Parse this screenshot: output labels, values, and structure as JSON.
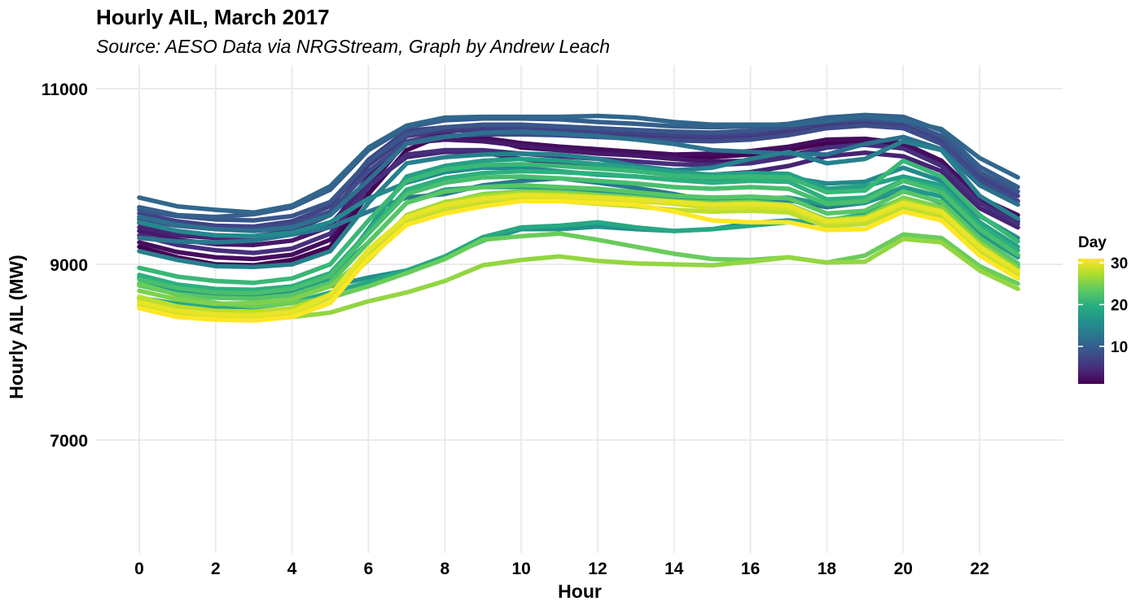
{
  "chart_data": {
    "type": "line",
    "title": "Hourly AIL, March 2017",
    "subtitle": "Source: AESO Data via NRGStream, Graph by Andrew Leach",
    "xlabel": "Hour",
    "ylabel": "Hourly AIL (MW)",
    "xlim": [
      0,
      23
    ],
    "ylim": [
      5800,
      11200
    ],
    "x_ticks": [
      0,
      2,
      4,
      6,
      8,
      10,
      12,
      14,
      16,
      18,
      20,
      22
    ],
    "y_ticks": [
      7000,
      9000,
      11000
    ],
    "grid": true,
    "x": [
      0,
      1,
      2,
      3,
      4,
      5,
      6,
      7,
      8,
      9,
      10,
      11,
      12,
      13,
      14,
      15,
      16,
      17,
      18,
      19,
      20,
      21,
      22,
      23
    ],
    "legend": {
      "title": "Day",
      "position": "right",
      "ticks": [
        10,
        20,
        30
      ],
      "range": [
        1,
        31
      ],
      "colormap": "viridis"
    },
    "series": [
      {
        "day": 1,
        "values": [
          9200,
          9080,
          9000,
          8990,
          9050,
          9200,
          9800,
          10300,
          10480,
          10440,
          10330,
          10300,
          10270,
          10240,
          10200,
          10220,
          10250,
          10300,
          10380,
          10400,
          10350,
          10150,
          9720,
          9520
        ]
      },
      {
        "day": 2,
        "values": [
          9250,
          9140,
          9080,
          9060,
          9110,
          9280,
          9890,
          10400,
          10480,
          10440,
          10380,
          10340,
          10310,
          10280,
          10250,
          10260,
          10290,
          10340,
          10420,
          10430,
          10380,
          10180,
          9760,
          9560
        ]
      },
      {
        "day": 3,
        "values": [
          9380,
          9280,
          9230,
          9220,
          9270,
          9430,
          10000,
          10380,
          10420,
          10400,
          10350,
          10300,
          10260,
          10240,
          10200,
          10170,
          10180,
          10240,
          10330,
          10370,
          10320,
          10130,
          9700,
          9490
        ]
      },
      {
        "day": 4,
        "values": [
          9420,
          9330,
          9300,
          9290,
          9340,
          9460,
          9900,
          10220,
          10280,
          10270,
          10200,
          10150,
          10100,
          10060,
          10030,
          10020,
          10050,
          10120,
          10230,
          10270,
          10230,
          10060,
          9640,
          9420
        ]
      },
      {
        "day": 5,
        "values": [
          9330,
          9220,
          9160,
          9130,
          9180,
          9350,
          9880,
          10250,
          10300,
          10300,
          10260,
          10230,
          10200,
          10170,
          10140,
          10130,
          10150,
          10220,
          10330,
          10360,
          10320,
          10120,
          9700,
          9460
        ]
      },
      {
        "day": 6,
        "values": [
          9470,
          9380,
          9330,
          9320,
          9380,
          9560,
          10130,
          10460,
          10520,
          10530,
          10520,
          10500,
          10480,
          10460,
          10440,
          10430,
          10460,
          10520,
          10590,
          10600,
          10570,
          10400,
          9960,
          9720
        ]
      },
      {
        "day": 7,
        "values": [
          9580,
          9490,
          9440,
          9430,
          9490,
          9660,
          10190,
          10520,
          10560,
          10570,
          10560,
          10540,
          10520,
          10500,
          10480,
          10470,
          10490,
          10540,
          10620,
          10640,
          10600,
          10420,
          10010,
          9780
        ]
      },
      {
        "day": 8,
        "values": [
          9510,
          9440,
          9400,
          9400,
          9450,
          9600,
          10060,
          10400,
          10460,
          10480,
          10480,
          10470,
          10450,
          10430,
          10410,
          10400,
          10420,
          10470,
          10550,
          10580,
          10550,
          10370,
          9950,
          9720
        ]
      },
      {
        "day": 9,
        "values": [
          9620,
          9550,
          9510,
          9500,
          9550,
          9710,
          10170,
          10480,
          10560,
          10590,
          10590,
          10570,
          10550,
          10530,
          10510,
          10500,
          10520,
          10570,
          10640,
          10660,
          10630,
          10460,
          10050,
          9830
        ]
      },
      {
        "day": 10,
        "values": [
          9650,
          9560,
          9540,
          9570,
          9650,
          9850,
          10300,
          10560,
          10640,
          10660,
          10660,
          10650,
          10620,
          10600,
          10570,
          10560,
          10570,
          10600,
          10670,
          10700,
          10680,
          10520,
          10110,
          9880
        ]
      },
      {
        "day": 11,
        "values": [
          9760,
          9660,
          9620,
          9590,
          9670,
          9890,
          10330,
          10580,
          10670,
          10680,
          10680,
          10680,
          10690,
          10670,
          10620,
          10590,
          10590,
          10590,
          10630,
          10690,
          10640,
          10540,
          10210,
          9990
        ]
      },
      {
        "day": 12,
        "values": [
          9540,
          9450,
          9400,
          9380,
          9420,
          9560,
          9960,
          10370,
          10450,
          10500,
          10510,
          10490,
          10460,
          10420,
          10370,
          10300,
          10280,
          10260,
          10250,
          10370,
          10450,
          10310,
          9900,
          9680
        ]
      },
      {
        "day": 13,
        "values": [
          9300,
          9260,
          9250,
          9270,
          9340,
          9420,
          9600,
          9760,
          9800,
          9900,
          9950,
          9980,
          9930,
          9870,
          9800,
          9720,
          9700,
          9730,
          9650,
          9700,
          9850,
          9700,
          9350,
          9100
        ]
      },
      {
        "day": 14,
        "values": [
          9150,
          9050,
          8980,
          8970,
          9000,
          9150,
          9700,
          10150,
          10220,
          10250,
          10260,
          10250,
          10200,
          10120,
          10070,
          10100,
          10200,
          10280,
          10150,
          10200,
          10400,
          10300,
          9780,
          9520
        ]
      },
      {
        "day": 15,
        "values": [
          9480,
          9380,
          9330,
          9320,
          9360,
          9480,
          9750,
          9930,
          10050,
          10100,
          10100,
          10060,
          10020,
          10000,
          9960,
          9940,
          9960,
          9990,
          9920,
          9940,
          10100,
          9950,
          9550,
          9300
        ]
      },
      {
        "day": 16,
        "values": [
          8780,
          8700,
          8660,
          8650,
          8700,
          8750,
          8850,
          8930,
          9080,
          9270,
          9400,
          9400,
          9430,
          9400,
          9380,
          9400,
          9470,
          9500,
          9460,
          9550,
          9700,
          9600,
          9200,
          9000
        ]
      },
      {
        "day": 17,
        "values": [
          8850,
          8740,
          8690,
          8680,
          8720,
          8850,
          9250,
          9700,
          9850,
          9880,
          9880,
          9870,
          9840,
          9810,
          9760,
          9720,
          9740,
          9760,
          9680,
          9700,
          9880,
          9770,
          9350,
          9080
        ]
      },
      {
        "day": 18,
        "values": [
          8780,
          8670,
          8620,
          8610,
          8650,
          8820,
          9400,
          10000,
          10120,
          10180,
          10200,
          10180,
          10140,
          10100,
          10050,
          10020,
          10040,
          10030,
          9860,
          9890,
          10000,
          9900,
          9480,
          9200
        ]
      },
      {
        "day": 19,
        "values": [
          8620,
          8550,
          8520,
          8510,
          8560,
          8680,
          8800,
          8930,
          9090,
          9310,
          9420,
          9440,
          9480,
          9420,
          9380,
          9400,
          9440,
          9480,
          9500,
          9570,
          9750,
          9620,
          9220,
          8970
        ]
      },
      {
        "day": 20,
        "values": [
          8880,
          8770,
          8720,
          8710,
          8750,
          8900,
          9370,
          9850,
          9980,
          10040,
          10060,
          10050,
          10030,
          10000,
          9960,
          9930,
          9950,
          9940,
          9740,
          9760,
          9960,
          9860,
          9440,
          9160
        ]
      },
      {
        "day": 21,
        "values": [
          8960,
          8860,
          8810,
          8790,
          8840,
          9000,
          9500,
          9950,
          10080,
          10130,
          10140,
          10120,
          10090,
          10060,
          10010,
          9990,
          10000,
          9990,
          9820,
          9840,
          10180,
          10000,
          9560,
          9260
        ]
      },
      {
        "day": 22,
        "values": [
          8830,
          8730,
          8680,
          8670,
          8720,
          8870,
          9350,
          9800,
          9930,
          9990,
          10000,
          9980,
          9950,
          9920,
          9880,
          9860,
          9880,
          9860,
          9690,
          9720,
          9950,
          9820,
          9400,
          9110
        ]
      },
      {
        "day": 23,
        "values": [
          8760,
          8660,
          8620,
          8610,
          8650,
          8790,
          9250,
          9700,
          9830,
          9880,
          9900,
          9880,
          9860,
          9820,
          9780,
          9760,
          9770,
          9750,
          9580,
          9610,
          9830,
          9710,
          9300,
          9010
        ]
      },
      {
        "day": 24,
        "values": [
          8780,
          8650,
          8560,
          8520,
          8560,
          8620,
          8750,
          8900,
          9060,
          9280,
          9320,
          9350,
          9280,
          9200,
          9120,
          9060,
          9050,
          9080,
          9020,
          9100,
          9340,
          9300,
          8980,
          8780
        ]
      },
      {
        "day": 25,
        "values": [
          8700,
          8600,
          8550,
          8560,
          8600,
          8750,
          9100,
          9550,
          9700,
          9800,
          9830,
          9820,
          9790,
          9760,
          9720,
          9700,
          9710,
          9680,
          9510,
          9540,
          9760,
          9650,
          9250,
          8960
        ]
      },
      {
        "day": 26,
        "values": [
          8520,
          8400,
          8380,
          8380,
          8400,
          8450,
          8580,
          8680,
          8810,
          8990,
          9050,
          9090,
          9040,
          9010,
          9000,
          8990,
          9030,
          9080,
          9020,
          9030,
          9290,
          9250,
          8930,
          8720
        ]
      },
      {
        "day": 27,
        "values": [
          8600,
          8500,
          8460,
          8450,
          8490,
          8660,
          9100,
          9560,
          9710,
          9780,
          9810,
          9800,
          9770,
          9740,
          9700,
          9680,
          9690,
          9660,
          9500,
          9520,
          9720,
          9610,
          9220,
          8930
        ]
      },
      {
        "day": 28,
        "values": [
          8630,
          8520,
          8470,
          8460,
          8500,
          8650,
          9050,
          9480,
          9620,
          9700,
          9730,
          9720,
          9690,
          9660,
          9620,
          9600,
          9610,
          9590,
          9430,
          9460,
          9650,
          9550,
          9160,
          8880
        ]
      },
      {
        "day": 29,
        "values": [
          8540,
          8440,
          8410,
          8400,
          8440,
          8620,
          9150,
          9520,
          9650,
          9730,
          9770,
          9760,
          9740,
          9720,
          9690,
          9640,
          9650,
          9640,
          9470,
          9500,
          9680,
          9580,
          9180,
          8900
        ]
      },
      {
        "day": 30,
        "values": [
          8570,
          8470,
          8430,
          8420,
          8460,
          8650,
          9170,
          9540,
          9680,
          9750,
          9790,
          9780,
          9760,
          9740,
          9710,
          9680,
          9690,
          9670,
          9490,
          9520,
          9700,
          9600,
          9200,
          8920
        ]
      },
      {
        "day": 31,
        "values": [
          8500,
          8400,
          8370,
          8360,
          8400,
          8560,
          9070,
          9450,
          9580,
          9660,
          9720,
          9720,
          9700,
          9680,
          9600,
          9500,
          9480,
          9480,
          9390,
          9400,
          9600,
          9500,
          9100,
          8840
        ]
      }
    ]
  }
}
